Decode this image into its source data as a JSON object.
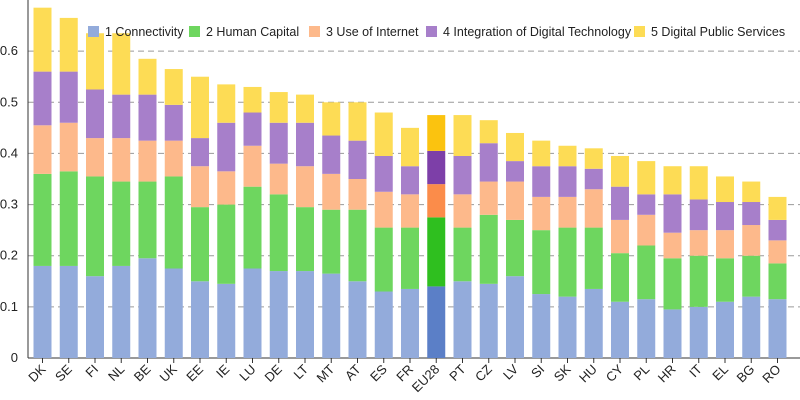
{
  "chart_data": {
    "type": "bar",
    "stacked": true,
    "title": "",
    "xlabel": "",
    "ylabel": "",
    "ylim": [
      0,
      0.7
    ],
    "yticks": [
      "0",
      "0.1",
      "0.2",
      "0.3",
      "0.4",
      "0.5",
      "0.6"
    ],
    "ytick_values": [
      0,
      0.1,
      0.2,
      0.3,
      0.4,
      0.5,
      0.6
    ],
    "grid": true,
    "legend_position": "top",
    "categories": [
      "DK",
      "SE",
      "FI",
      "NL",
      "BE",
      "UK",
      "EE",
      "IE",
      "LU",
      "DE",
      "LT",
      "MT",
      "AT",
      "ES",
      "FR",
      "EU28",
      "PT",
      "CZ",
      "LV",
      "SI",
      "SK",
      "HU",
      "CY",
      "PL",
      "HR",
      "IT",
      "EL",
      "BG",
      "RO"
    ],
    "highlight_category": "EU28",
    "series": [
      {
        "name": "1 Connectivity",
        "color": "#93abdb",
        "highlight_color": "#5b7fc7",
        "values": [
          0.18,
          0.18,
          0.16,
          0.18,
          0.195,
          0.175,
          0.15,
          0.145,
          0.175,
          0.17,
          0.17,
          0.165,
          0.15,
          0.13,
          0.135,
          0.14,
          0.15,
          0.145,
          0.16,
          0.125,
          0.12,
          0.135,
          0.11,
          0.115,
          0.095,
          0.1,
          0.11,
          0.12,
          0.115
        ]
      },
      {
        "name": "2 Human Capital",
        "color": "#6ed65f",
        "highlight_color": "#2fbf1f",
        "values": [
          0.18,
          0.185,
          0.195,
          0.165,
          0.15,
          0.18,
          0.145,
          0.155,
          0.16,
          0.15,
          0.125,
          0.125,
          0.14,
          0.125,
          0.12,
          0.135,
          0.105,
          0.135,
          0.11,
          0.125,
          0.135,
          0.12,
          0.095,
          0.105,
          0.1,
          0.1,
          0.085,
          0.08,
          0.07
        ]
      },
      {
        "name": "3 Use of Internet",
        "color": "#fdb98b",
        "highlight_color": "#fb8c4a",
        "values": [
          0.095,
          0.095,
          0.075,
          0.085,
          0.08,
          0.07,
          0.08,
          0.065,
          0.08,
          0.06,
          0.08,
          0.07,
          0.06,
          0.07,
          0.065,
          0.065,
          0.065,
          0.065,
          0.075,
          0.065,
          0.06,
          0.075,
          0.065,
          0.06,
          0.05,
          0.05,
          0.055,
          0.06,
          0.045
        ]
      },
      {
        "name": "4 Integration of Digital Technology",
        "color": "#a77fca",
        "highlight_color": "#7d3fa8",
        "values": [
          0.105,
          0.1,
          0.095,
          0.085,
          0.09,
          0.07,
          0.055,
          0.095,
          0.065,
          0.08,
          0.085,
          0.075,
          0.075,
          0.07,
          0.055,
          0.065,
          0.075,
          0.075,
          0.04,
          0.06,
          0.06,
          0.04,
          0.065,
          0.04,
          0.075,
          0.06,
          0.055,
          0.045,
          0.04
        ]
      },
      {
        "name": "5 Digital Public Services",
        "color": "#fddc55",
        "highlight_color": "#fbc30f",
        "values": [
          0.125,
          0.105,
          0.11,
          0.12,
          0.07,
          0.07,
          0.12,
          0.075,
          0.05,
          0.06,
          0.055,
          0.065,
          0.075,
          0.085,
          0.075,
          0.07,
          0.08,
          0.045,
          0.055,
          0.05,
          0.04,
          0.04,
          0.06,
          0.065,
          0.055,
          0.065,
          0.05,
          0.04,
          0.045
        ]
      }
    ]
  }
}
